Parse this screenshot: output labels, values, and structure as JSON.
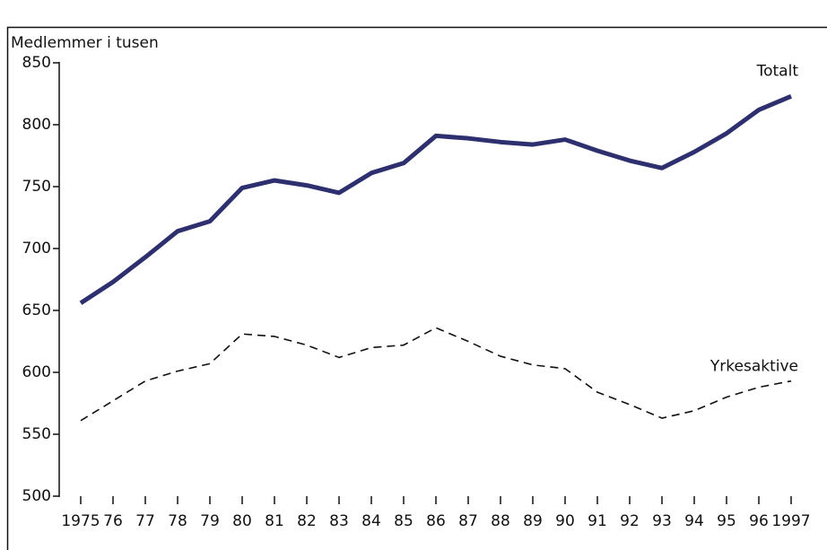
{
  "chart_data": {
    "type": "line",
    "y_label": "Medlemmer i tusen",
    "categories": [
      "1975",
      "76",
      "77",
      "78",
      "79",
      "80",
      "81",
      "82",
      "83",
      "84",
      "85",
      "86",
      "87",
      "88",
      "89",
      "90",
      "91",
      "92",
      "93",
      "94",
      "95",
      "96",
      "1997"
    ],
    "series": [
      {
        "name": "Totalt",
        "color": "#2e2f6e",
        "dashed": false,
        "values": [
          656,
          673,
          693,
          714,
          722,
          749,
          755,
          751,
          745,
          761,
          769,
          791,
          789,
          786,
          784,
          788,
          779,
          771,
          765,
          778,
          793,
          812,
          823
        ]
      },
      {
        "name": "Yrkesaktive",
        "color": "#111111",
        "dashed": true,
        "values": [
          561,
          577,
          593,
          601,
          607,
          631,
          629,
          622,
          612,
          620,
          622,
          636,
          625,
          613,
          606,
          603,
          584,
          574,
          563,
          569,
          580,
          588,
          593
        ]
      }
    ],
    "ylim": [
      500,
      850
    ],
    "yticks": [
      500,
      550,
      600,
      650,
      700,
      750,
      800,
      850
    ]
  }
}
